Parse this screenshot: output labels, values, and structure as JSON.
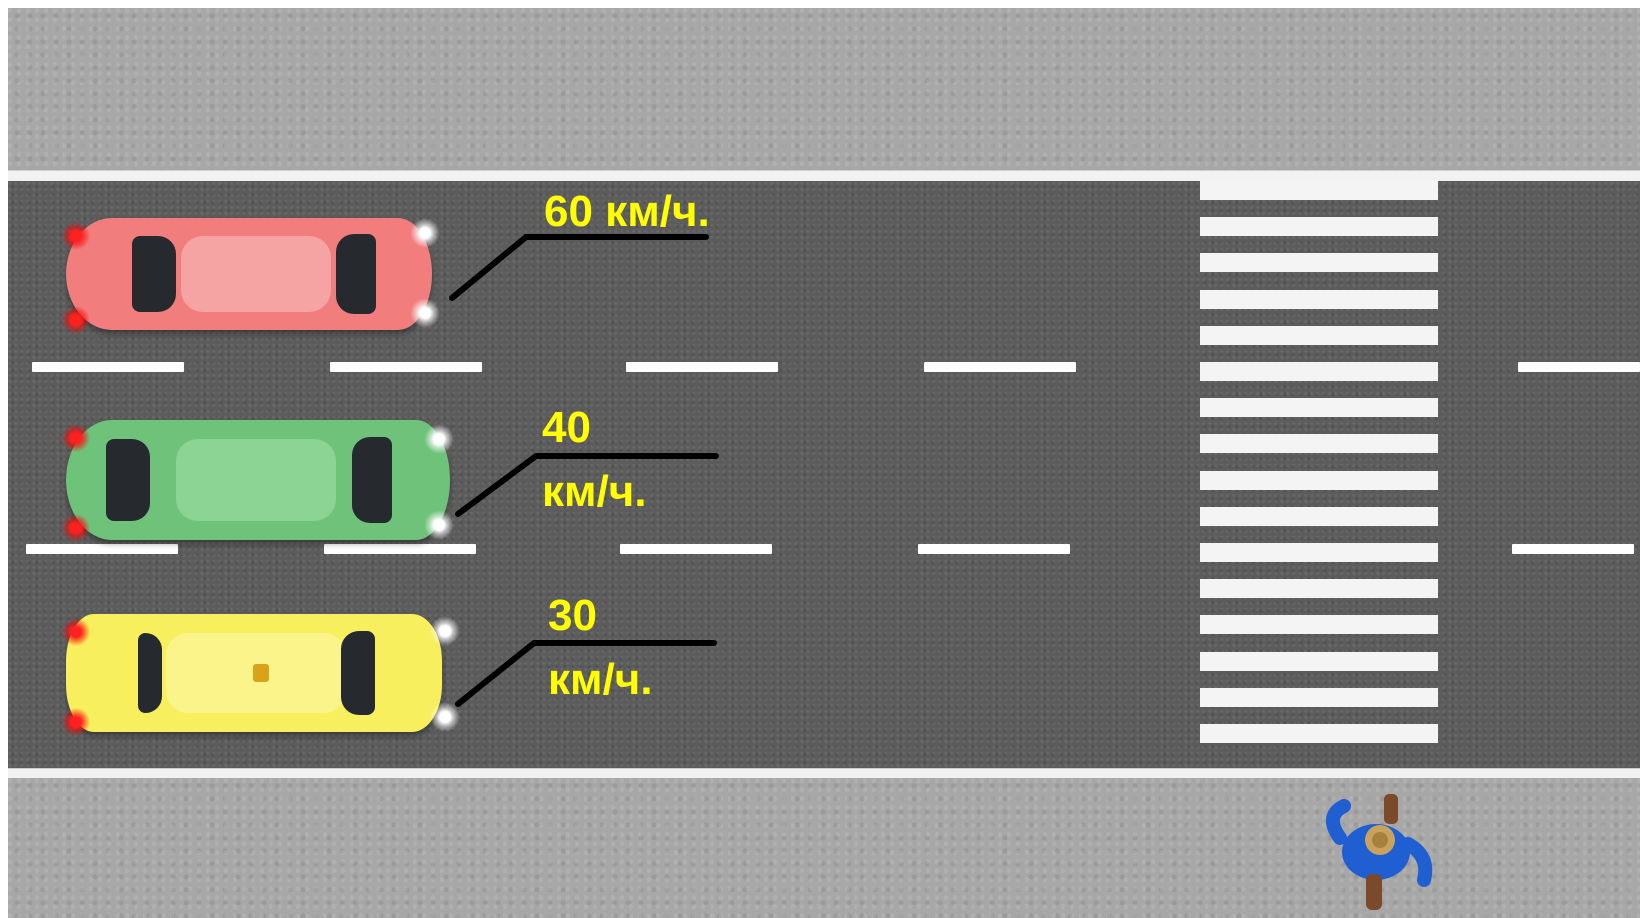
{
  "cars": [
    {
      "id": "red",
      "color": "#f17d7d",
      "roof_color": "#f6a3a3",
      "speed_label": "60 км/ч."
    },
    {
      "id": "green",
      "color": "#6fc27a",
      "roof_color": "#8cd494",
      "speed_label_line1": "40",
      "speed_label_line2": "км/ч."
    },
    {
      "id": "yellow",
      "color": "#f7ef5e",
      "roof_color": "#fbf48a",
      "speed_label_line1": "30",
      "speed_label_line2": "км/ч."
    }
  ],
  "colors": {
    "road": "#5c5c5c",
    "sidewalk": "#a7a7a7",
    "marking": "#ffffff",
    "label_text": "#ffff00",
    "leader_line": "#000000",
    "pedestrian_jacket": "#1f5fd1"
  },
  "icons": [
    "car-red-icon",
    "car-green-icon",
    "car-yellow-taxi-icon",
    "pedestrian-icon"
  ]
}
